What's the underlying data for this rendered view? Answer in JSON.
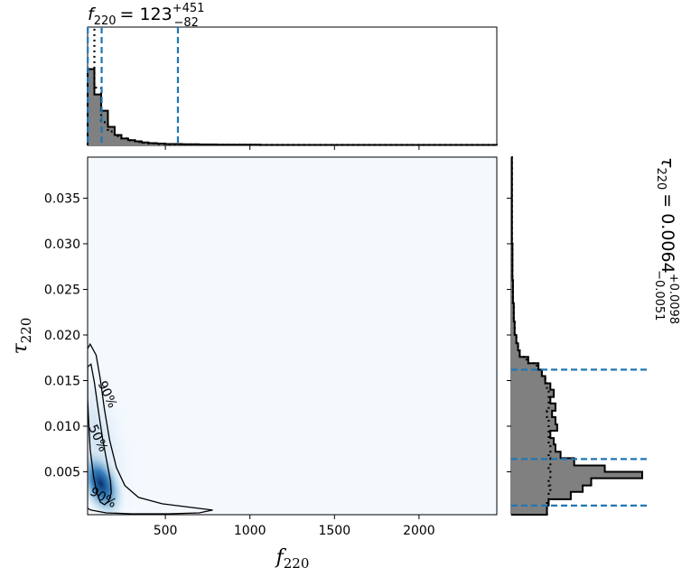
{
  "chart_data": {
    "type": "corner",
    "parameters": [
      {
        "symbol": "f",
        "subscript": "220",
        "median": "123",
        "upper": "+451",
        "lower": "−82"
      },
      {
        "symbol": "τ",
        "subscript": "220",
        "median": "0.0064",
        "upper": "+0.0098",
        "lower": "−0.0051"
      }
    ],
    "equals": "=",
    "x_range": [
      40,
      2460
    ],
    "y_range": [
      0.0003,
      0.0395
    ],
    "x_ticks": [
      500,
      1000,
      1500,
      2000
    ],
    "x_tick_labels": [
      "500",
      "1000",
      "1500",
      "2000"
    ],
    "y_ticks": [
      0.005,
      0.01,
      0.015,
      0.02,
      0.025,
      0.03,
      0.035
    ],
    "y_tick_labels": [
      "0.005",
      "0.010",
      "0.015",
      "0.020",
      "0.025",
      "0.030",
      "0.035"
    ],
    "f_quantiles": [
      41,
      123,
      574
    ],
    "tau_quantiles": [
      0.0013,
      0.0064,
      0.0162
    ],
    "contour_labels": [
      "90%",
      "50%",
      "90%"
    ],
    "f_hist": {
      "edges": [
        40,
        80,
        120,
        160,
        200,
        240,
        280,
        320,
        360,
        400,
        450,
        500,
        600,
        700,
        800,
        1060,
        2460
      ],
      "density": [
        0.66,
        0.44,
        0.3,
        0.16,
        0.09,
        0.06,
        0.045,
        0.035,
        0.025,
        0.02,
        0.016,
        0.012,
        0.01,
        0.008,
        0.006,
        0.004
      ],
      "prior_density": [
        1.0,
        0.5,
        0.2,
        0.12,
        0.08,
        0.06,
        0.045,
        0.03,
        0.022,
        0.016,
        0.012,
        0.01,
        0.008,
        0.006,
        0.005,
        0.004
      ]
    },
    "tau_hist": {
      "edges": [
        0.0003,
        0.0013,
        0.002,
        0.0028,
        0.0035,
        0.0043,
        0.005,
        0.0057,
        0.0065,
        0.0072,
        0.008,
        0.0087,
        0.0095,
        0.0102,
        0.011,
        0.0117,
        0.0125,
        0.0132,
        0.014,
        0.0147,
        0.0155,
        0.0162,
        0.0169,
        0.0176,
        0.0183,
        0.0191,
        0.02,
        0.0215,
        0.0235,
        0.026,
        0.03,
        0.0395
      ],
      "density": [
        0.21,
        0.22,
        0.35,
        0.42,
        0.47,
        0.77,
        0.55,
        0.37,
        0.29,
        0.26,
        0.25,
        0.23,
        0.27,
        0.26,
        0.24,
        0.26,
        0.23,
        0.25,
        0.23,
        0.2,
        0.18,
        0.16,
        0.1,
        0.05,
        0.04,
        0.03,
        0.02,
        0.015,
        0.01,
        0.007,
        0.004
      ],
      "prior_density": [
        0.21,
        0.21,
        0.22,
        0.23,
        0.22,
        0.23,
        0.22,
        0.23,
        0.22,
        0.23,
        0.22,
        0.22,
        0.22,
        0.22,
        0.21,
        0.22,
        0.22,
        0.22,
        0.21,
        0.2,
        0.18,
        0.15,
        0.09,
        0.05,
        0.04,
        0.03,
        0.02,
        0.015,
        0.01,
        0.007,
        0.004
      ]
    },
    "density_peak": {
      "f": 118,
      "tau": 0.0037
    }
  }
}
